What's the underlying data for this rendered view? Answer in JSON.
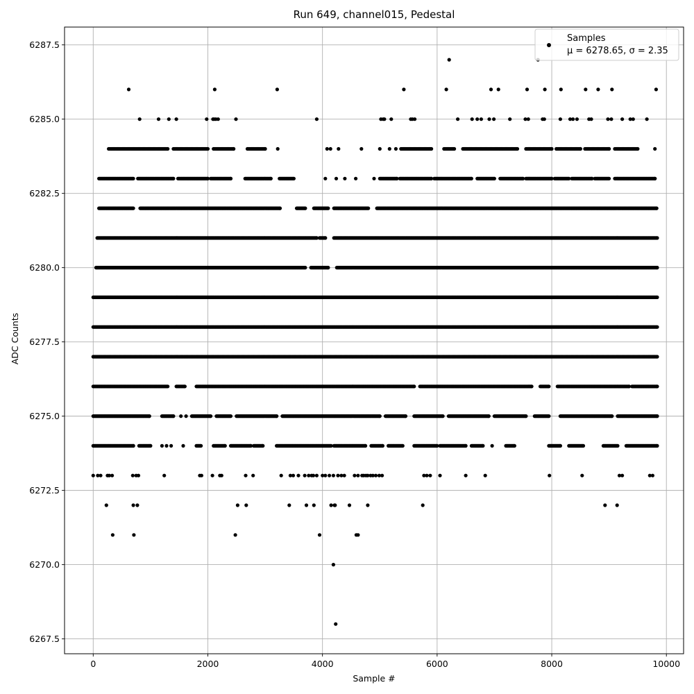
{
  "chart_data": {
    "type": "scatter",
    "title": "Run 649, channel015, Pedestal",
    "xlabel": "Sample #",
    "ylabel": "ADC Counts",
    "xlim": [
      -500,
      10300
    ],
    "ylim": [
      6267.0,
      6288.1
    ],
    "xticks": [
      0,
      2000,
      4000,
      6000,
      8000,
      10000
    ],
    "xtick_labels": [
      "0",
      "2000",
      "4000",
      "6000",
      "8000",
      "10000"
    ],
    "yticks": [
      6267.5,
      6270.0,
      6272.5,
      6275.0,
      6277.5,
      6280.0,
      6282.5,
      6285.0,
      6287.5
    ],
    "ytick_labels": [
      "6267.5",
      "6270.0",
      "6272.5",
      "6275.0",
      "6277.5",
      "6280.0",
      "6282.5",
      "6285.0",
      "6287.5"
    ],
    "grid": true,
    "legend": {
      "placement": "top-right",
      "entries": [
        "Samples",
        "μ = 6278.65, σ = 2.35"
      ]
    },
    "marker_color": "#000000",
    "series": [
      {
        "name": "Samples",
        "sample_count": 9840,
        "levels": [
          {
            "y": 6287,
            "x": [
              6210,
              7760
            ]
          },
          {
            "y": 6286,
            "x": [
              620,
              2120,
              3210,
              5420,
              6160,
              6940,
              7070,
              7570,
              7880,
              8160,
              8590,
              8810,
              9050,
              9820
            ]
          },
          {
            "y": 6285,
            "x": [
              810,
              1140,
              1320,
              1450,
              1980,
              2090,
              2110,
              2140,
              2180,
              2490,
              3900,
              5020,
              5060,
              5080,
              5200,
              5540,
              5570,
              5610,
              6360,
              6610,
              6700,
              6770,
              6910,
              6990,
              7270,
              7540,
              7590,
              7840,
              7870,
              8150,
              8320,
              8370,
              8440,
              8650,
              8690,
              8980,
              9040,
              9230,
              9370,
              9420,
              9660
            ]
          },
          {
            "y": 6284,
            "x": [
              [
                270,
                1300
              ],
              [
                1400,
                2000
              ],
              [
                2100,
                2450
              ],
              [
                2690,
                3000
              ],
              3220,
              4080,
              4140,
              4280,
              4680,
              5000,
              5170,
              5280,
              [
                5370,
                5900
              ],
              [
                6120,
                6300
              ],
              [
                6450,
                7400
              ],
              [
                7550,
                8000
              ],
              [
                8080,
                8500
              ],
              [
                8580,
                9000
              ],
              [
                9100,
                9500
              ],
              9800
            ]
          },
          {
            "y": 6283,
            "x": [
              [
                100,
                700
              ],
              [
                780,
                1400
              ],
              [
                1480,
                2000
              ],
              [
                2050,
                2400
              ],
              [
                2650,
                3100
              ],
              [
                3250,
                3500
              ],
              4050,
              4240,
              4390,
              4580,
              4900,
              [
                5000,
                5300
              ],
              [
                5350,
                5900
              ],
              [
                5950,
                6600
              ],
              [
                6700,
                7000
              ],
              [
                7100,
                7500
              ],
              [
                7550,
                8000
              ],
              [
                8050,
                8300
              ],
              [
                8350,
                8700
              ],
              [
                8750,
                9000
              ],
              [
                9100,
                9800
              ]
            ]
          },
          {
            "y": 6282,
            "x": [
              [
                100,
                700
              ],
              [
                820,
                3260
              ],
              [
                3550,
                3700
              ],
              [
                3850,
                4100
              ],
              [
                4200,
                4800
              ],
              [
                4950,
                9830
              ]
            ]
          },
          {
            "y": 6281,
            "x": [
              [
                70,
                3900
              ],
              [
                3950,
                4050
              ],
              [
                4200,
                9840
              ]
            ]
          },
          {
            "y": 6280,
            "x": [
              [
                50,
                3700
              ],
              [
                3800,
                4100
              ],
              [
                4250,
                9840
              ]
            ]
          },
          {
            "y": 6279,
            "x": [
              [
                0,
                9840
              ]
            ]
          },
          {
            "y": 6278,
            "x": [
              [
                0,
                9840
              ]
            ]
          },
          {
            "y": 6277,
            "x": [
              [
                0,
                9840
              ]
            ]
          },
          {
            "y": 6276,
            "x": [
              [
                0,
                1300
              ],
              [
                1450,
                1600
              ],
              [
                1800,
                5600
              ],
              [
                5700,
                7650
              ],
              [
                7800,
                7950
              ],
              [
                8100,
                9350
              ],
              [
                9400,
                9840
              ]
            ]
          },
          {
            "y": 6275,
            "x": [
              [
                0,
                980
              ],
              [
                1200,
                1400
              ],
              1530,
              1620,
              [
                1720,
                2050
              ],
              [
                2150,
                2400
              ],
              [
                2500,
                3200
              ],
              [
                3300,
                5000
              ],
              [
                5100,
                5450
              ],
              [
                5600,
                6100
              ],
              [
                6200,
                6900
              ],
              [
                7000,
                7550
              ],
              [
                7700,
                7950
              ],
              [
                8150,
                9050
              ],
              [
                9150,
                9840
              ]
            ]
          },
          {
            "y": 6274,
            "x": [
              [
                0,
                700
              ],
              [
                800,
                1000
              ],
              1200,
              1280,
              1360,
              1570,
              [
                1800,
                1880
              ],
              [
                2100,
                2300
              ],
              [
                2400,
                2750
              ],
              [
                2800,
                2960
              ],
              [
                3200,
                4150
              ],
              [
                4200,
                4750
              ],
              [
                4850,
                5050
              ],
              [
                5150,
                5400
              ],
              [
                5600,
                6000
              ],
              [
                6050,
                6500
              ],
              [
                6600,
                6800
              ],
              6960,
              [
                7200,
                7350
              ],
              [
                7950,
                8150
              ],
              [
                8300,
                8550
              ],
              [
                8900,
                9150
              ],
              [
                9300,
                9840
              ]
            ]
          },
          {
            "y": 6273,
            "x": [
              0,
              80,
              130,
              250,
              280,
              330,
              690,
              750,
              790,
              1240,
              1860,
              1890,
              2080,
              2210,
              2240,
              2660,
              2790,
              3280,
              3440,
              3490,
              3580,
              3690,
              3760,
              3810,
              3840,
              3900,
              4000,
              4050,
              4120,
              4190,
              4270,
              4330,
              4380,
              4560,
              4620,
              4690,
              4720,
              4760,
              4790,
              4840,
              4880,
              4930,
              4990,
              5040,
              5770,
              5820,
              5880,
              6050,
              6500,
              6840,
              7960,
              8530,
              9180,
              9230,
              9710,
              9760
            ]
          },
          {
            "y": 6272,
            "x": [
              230,
              700,
              770,
              2520,
              2670,
              3420,
              3720,
              3850,
              4150,
              4210,
              4220,
              4470,
              4790,
              5750,
              8930,
              9140
            ]
          },
          {
            "y": 6271,
            "x": [
              340,
              710,
              2480,
              3950,
              4590,
              4620
            ]
          },
          {
            "y": 6270,
            "x": [
              4190
            ]
          },
          {
            "y": 6268,
            "x": [
              4230
            ]
          }
        ]
      }
    ]
  }
}
